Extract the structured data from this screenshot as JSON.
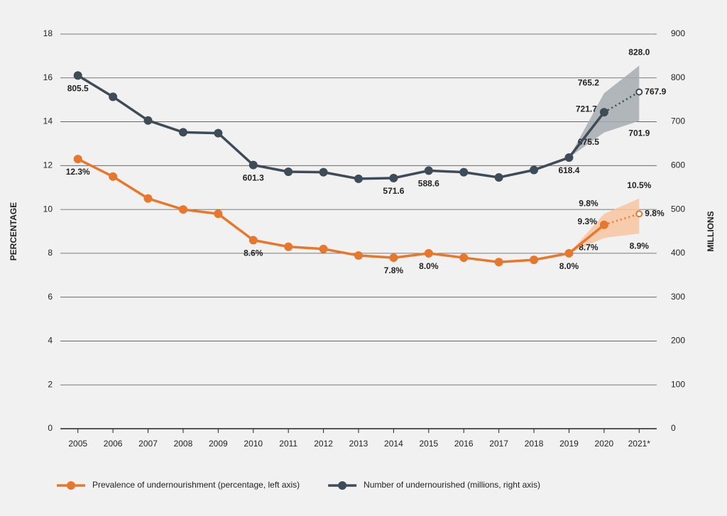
{
  "chart_data": {
    "type": "line",
    "categories": [
      "2005",
      "2006",
      "2007",
      "2008",
      "2009",
      "2010",
      "2011",
      "2012",
      "2013",
      "2014",
      "2015",
      "2016",
      "2017",
      "2018",
      "2019",
      "2020",
      "2021*"
    ],
    "projected": [
      false,
      false,
      false,
      false,
      false,
      false,
      false,
      false,
      false,
      false,
      false,
      false,
      false,
      false,
      false,
      false,
      true
    ],
    "ylabel": "PERCENTAGE",
    "y2label": "MILLIONS",
    "ylim": [
      0,
      18
    ],
    "yticks": [
      0,
      2,
      4,
      6,
      8,
      10,
      12,
      14,
      16,
      18
    ],
    "y2lim": [
      0,
      900
    ],
    "y2ticks": [
      0,
      100,
      200,
      300,
      400,
      500,
      600,
      700,
      800,
      900
    ],
    "grid": true,
    "legend": "bottom",
    "series": [
      {
        "name": "Prevalence of undernourishment (percentage, left axis)",
        "color": "#e8772e",
        "band_color": "#f7c6a0",
        "values": [
          12.3,
          11.5,
          10.5,
          10.0,
          9.8,
          8.6,
          8.3,
          8.2,
          7.9,
          7.8,
          8.0,
          7.8,
          7.6,
          7.7,
          8.0,
          9.3,
          9.8
        ],
        "value_labels": [
          "12.3%",
          null,
          null,
          null,
          null,
          "8.6%",
          null,
          null,
          null,
          "7.8%",
          "8.0%",
          null,
          null,
          null,
          "8.0%",
          "9.3%",
          "9.8%"
        ],
        "lower": [
          null,
          null,
          null,
          null,
          null,
          null,
          null,
          null,
          null,
          null,
          null,
          null,
          null,
          null,
          null,
          8.7,
          8.9
        ],
        "lower_labels": [
          null,
          null,
          null,
          null,
          null,
          null,
          null,
          null,
          null,
          null,
          null,
          null,
          null,
          null,
          null,
          "8.7%",
          "8.9%"
        ],
        "upper": [
          null,
          null,
          null,
          null,
          null,
          null,
          null,
          null,
          null,
          null,
          null,
          null,
          null,
          null,
          null,
          9.8,
          10.5
        ],
        "upper_labels": [
          null,
          null,
          null,
          null,
          null,
          null,
          null,
          null,
          null,
          null,
          null,
          null,
          null,
          null,
          null,
          "9.8%",
          "10.5%"
        ]
      },
      {
        "name": "Number of undernourished (millions, right axis)",
        "color": "#3e4c58",
        "band_color": "#a6abb2",
        "axis": "y2",
        "values": [
          805.5,
          757,
          703,
          676,
          674,
          601.3,
          586,
          585,
          570,
          571.6,
          588.6,
          585,
          573,
          590,
          618.4,
          721.7,
          767.9
        ],
        "value_labels": [
          "805.5",
          null,
          null,
          null,
          null,
          "601.3",
          null,
          null,
          null,
          "571.6",
          "588.6",
          null,
          null,
          null,
          "618.4",
          "721.7",
          "767.9"
        ],
        "lower": [
          null,
          null,
          null,
          null,
          null,
          null,
          null,
          null,
          null,
          null,
          null,
          null,
          null,
          null,
          null,
          675.5,
          701.9
        ],
        "lower_labels": [
          null,
          null,
          null,
          null,
          null,
          null,
          null,
          null,
          null,
          null,
          null,
          null,
          null,
          null,
          null,
          "675.5",
          "701.9"
        ],
        "upper": [
          null,
          null,
          null,
          null,
          null,
          null,
          null,
          null,
          null,
          null,
          null,
          null,
          null,
          null,
          null,
          765.2,
          828.0
        ],
        "upper_labels": [
          null,
          null,
          null,
          null,
          null,
          null,
          null,
          null,
          null,
          null,
          null,
          null,
          null,
          null,
          null,
          "765.2",
          "828.0"
        ]
      }
    ]
  }
}
